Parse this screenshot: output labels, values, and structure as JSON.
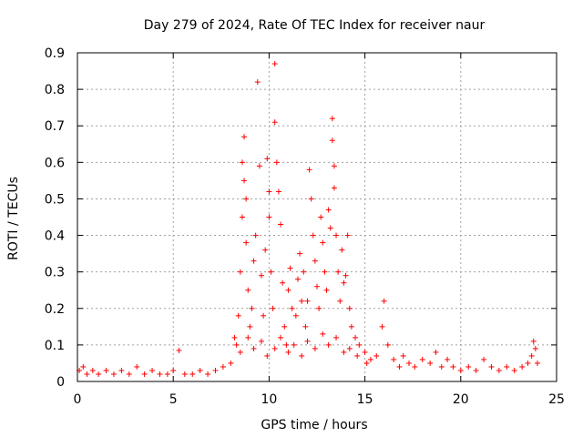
{
  "chart_data": {
    "type": "scatter",
    "title": "Day 279 of 2024, Rate Of TEC Index for receiver naur",
    "xlabel": "GPS time / hours",
    "ylabel": "ROTI / TECUs",
    "xlim": [
      0,
      25
    ],
    "ylim": [
      0,
      0.9
    ],
    "xticks": [
      0,
      5,
      10,
      15,
      20,
      25
    ],
    "yticks": [
      0,
      0.1,
      0.2,
      0.3,
      0.4,
      0.5,
      0.6,
      0.7,
      0.8,
      0.9
    ],
    "grid": true,
    "marker": "+",
    "color": "#ff0000",
    "series": [
      {
        "points": [
          [
            0.1,
            0.03
          ],
          [
            0.3,
            0.04
          ],
          [
            0.5,
            0.02
          ],
          [
            0.8,
            0.03
          ],
          [
            1.1,
            0.02
          ],
          [
            1.5,
            0.03
          ],
          [
            1.9,
            0.02
          ],
          [
            2.3,
            0.03
          ],
          [
            2.7,
            0.02
          ],
          [
            3.1,
            0.04
          ],
          [
            3.5,
            0.02
          ],
          [
            3.9,
            0.03
          ],
          [
            4.3,
            0.02
          ],
          [
            4.7,
            0.02
          ],
          [
            5.0,
            0.03
          ],
          [
            5.3,
            0.085
          ],
          [
            5.6,
            0.02
          ],
          [
            6.0,
            0.02
          ],
          [
            6.4,
            0.03
          ],
          [
            6.8,
            0.02
          ],
          [
            7.2,
            0.03
          ],
          [
            7.6,
            0.04
          ],
          [
            8.0,
            0.05
          ],
          [
            8.2,
            0.12
          ],
          [
            8.4,
            0.18
          ],
          [
            8.5,
            0.3
          ],
          [
            8.6,
            0.45
          ],
          [
            8.6,
            0.6
          ],
          [
            8.7,
            0.67
          ],
          [
            8.7,
            0.55
          ],
          [
            8.8,
            0.5
          ],
          [
            8.8,
            0.38
          ],
          [
            8.9,
            0.25
          ],
          [
            9.0,
            0.15
          ],
          [
            9.1,
            0.2
          ],
          [
            9.2,
            0.33
          ],
          [
            9.3,
            0.4
          ],
          [
            9.4,
            0.82
          ],
          [
            9.5,
            0.59
          ],
          [
            9.6,
            0.29
          ],
          [
            9.7,
            0.18
          ],
          [
            9.8,
            0.36
          ],
          [
            9.9,
            0.61
          ],
          [
            10.0,
            0.52
          ],
          [
            10.0,
            0.45
          ],
          [
            10.1,
            0.3
          ],
          [
            10.2,
            0.2
          ],
          [
            10.3,
            0.87
          ],
          [
            10.3,
            0.71
          ],
          [
            10.4,
            0.6
          ],
          [
            10.5,
            0.52
          ],
          [
            10.6,
            0.43
          ],
          [
            10.7,
            0.27
          ],
          [
            10.8,
            0.15
          ],
          [
            10.9,
            0.1
          ],
          [
            11.0,
            0.25
          ],
          [
            11.1,
            0.31
          ],
          [
            11.2,
            0.2
          ],
          [
            11.4,
            0.18
          ],
          [
            11.5,
            0.28
          ],
          [
            11.6,
            0.35
          ],
          [
            11.7,
            0.22
          ],
          [
            11.8,
            0.3
          ],
          [
            11.9,
            0.15
          ],
          [
            12.0,
            0.22
          ],
          [
            12.1,
            0.58
          ],
          [
            12.2,
            0.5
          ],
          [
            12.3,
            0.4
          ],
          [
            12.4,
            0.33
          ],
          [
            12.5,
            0.26
          ],
          [
            12.6,
            0.2
          ],
          [
            12.7,
            0.45
          ],
          [
            12.8,
            0.38
          ],
          [
            12.9,
            0.3
          ],
          [
            13.0,
            0.25
          ],
          [
            13.1,
            0.47
          ],
          [
            13.2,
            0.42
          ],
          [
            13.3,
            0.72
          ],
          [
            13.3,
            0.66
          ],
          [
            13.4,
            0.59
          ],
          [
            13.4,
            0.53
          ],
          [
            13.5,
            0.4
          ],
          [
            13.6,
            0.3
          ],
          [
            13.7,
            0.22
          ],
          [
            13.8,
            0.36
          ],
          [
            13.9,
            0.27
          ],
          [
            14.0,
            0.29
          ],
          [
            14.1,
            0.4
          ],
          [
            14.2,
            0.2
          ],
          [
            14.3,
            0.15
          ],
          [
            14.5,
            0.12
          ],
          [
            14.7,
            0.1
          ],
          [
            15.0,
            0.08
          ],
          [
            15.3,
            0.06
          ],
          [
            15.6,
            0.07
          ],
          [
            15.9,
            0.15
          ],
          [
            16.0,
            0.22
          ],
          [
            16.2,
            0.1
          ],
          [
            16.5,
            0.06
          ],
          [
            16.8,
            0.04
          ],
          [
            17.0,
            0.07
          ],
          [
            17.3,
            0.05
          ],
          [
            17.6,
            0.04
          ],
          [
            18.0,
            0.06
          ],
          [
            18.4,
            0.05
          ],
          [
            18.7,
            0.08
          ],
          [
            19.0,
            0.04
          ],
          [
            19.3,
            0.06
          ],
          [
            19.6,
            0.04
          ],
          [
            20.0,
            0.03
          ],
          [
            20.4,
            0.04
          ],
          [
            20.8,
            0.03
          ],
          [
            21.2,
            0.06
          ],
          [
            21.6,
            0.04
          ],
          [
            22.0,
            0.03
          ],
          [
            22.4,
            0.04
          ],
          [
            22.8,
            0.03
          ],
          [
            23.2,
            0.04
          ],
          [
            23.5,
            0.05
          ],
          [
            23.7,
            0.07
          ],
          [
            23.8,
            0.11
          ],
          [
            23.9,
            0.09
          ],
          [
            24.0,
            0.05
          ],
          [
            8.3,
            0.1
          ],
          [
            8.5,
            0.08
          ],
          [
            8.9,
            0.12
          ],
          [
            9.2,
            0.09
          ],
          [
            9.6,
            0.11
          ],
          [
            9.9,
            0.07
          ],
          [
            10.3,
            0.09
          ],
          [
            10.6,
            0.12
          ],
          [
            11.0,
            0.08
          ],
          [
            11.3,
            0.1
          ],
          [
            11.7,
            0.07
          ],
          [
            12.0,
            0.11
          ],
          [
            12.4,
            0.09
          ],
          [
            12.8,
            0.13
          ],
          [
            13.1,
            0.1
          ],
          [
            13.5,
            0.12
          ],
          [
            13.9,
            0.08
          ],
          [
            14.2,
            0.09
          ],
          [
            14.6,
            0.07
          ],
          [
            15.1,
            0.05
          ]
        ]
      }
    ]
  }
}
